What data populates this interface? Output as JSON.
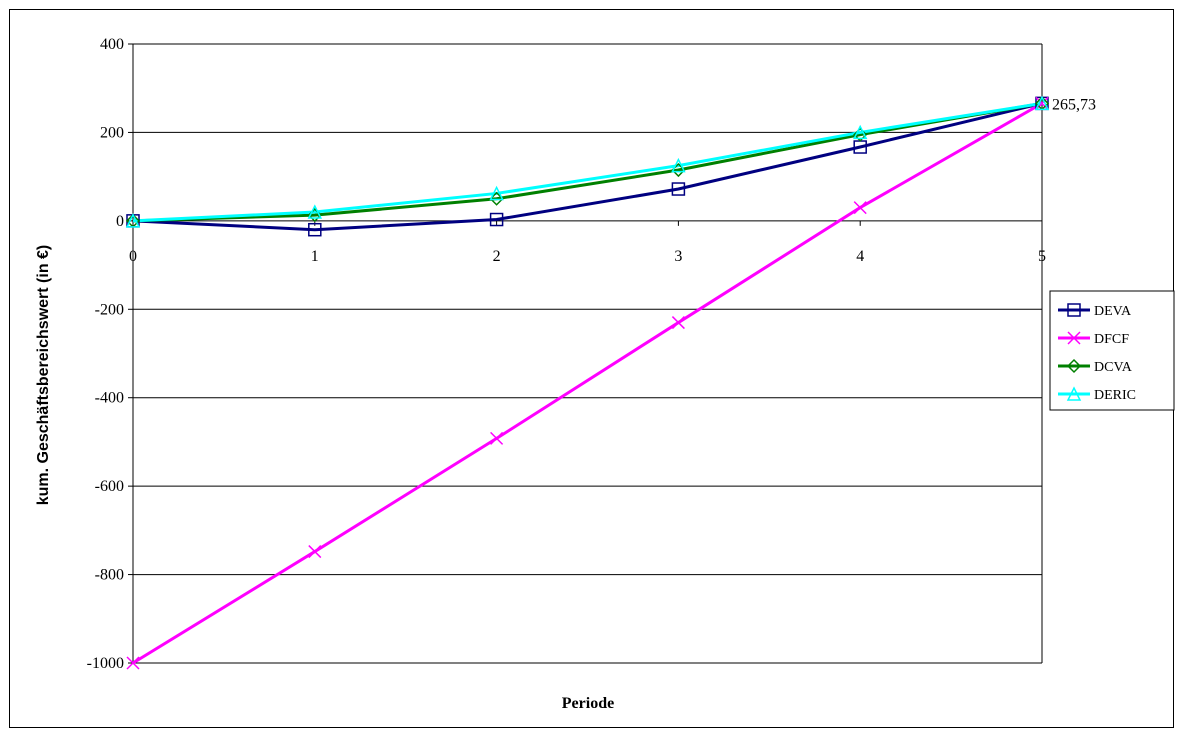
{
  "chart_data": {
    "type": "line",
    "title": "",
    "xlabel": "Periode",
    "ylabel": "kum. Geschäftsbereichswert (in €)",
    "x": [
      0,
      1,
      2,
      3,
      4,
      5
    ],
    "ylim": [
      -1000,
      400
    ],
    "yticks": [
      400,
      200,
      0,
      -200,
      -400,
      -600,
      -800,
      -1000
    ],
    "xticks": [
      0,
      1,
      2,
      3,
      4,
      5
    ],
    "grid": true,
    "legend_position": "right",
    "series": [
      {
        "name": "DEVA",
        "color": "#000080",
        "marker": "square",
        "values": [
          0,
          -20,
          3,
          72,
          167,
          265.73
        ]
      },
      {
        "name": "DFCF",
        "color": "#ff00ff",
        "marker": "x",
        "values": [
          -1000,
          -748,
          -492,
          -230,
          30,
          265.73
        ]
      },
      {
        "name": "DCVA",
        "color": "#008000",
        "marker": "diamond",
        "values": [
          0,
          13,
          50,
          115,
          195,
          265.73
        ]
      },
      {
        "name": "DERIC",
        "color": "#00ffff",
        "marker": "triangle",
        "values": [
          0,
          20,
          62,
          125,
          200,
          265.73
        ]
      }
    ],
    "annotations": [
      {
        "text": "265,73",
        "x": 5,
        "y": 265.73
      }
    ]
  }
}
